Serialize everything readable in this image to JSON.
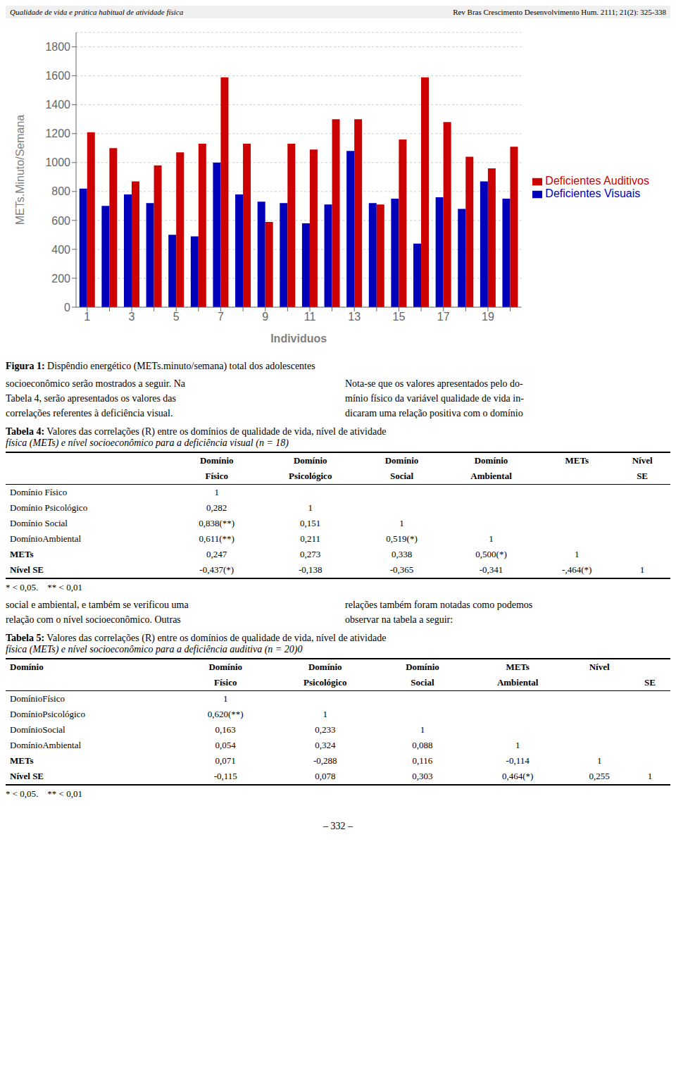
{
  "chart_data": {
    "type": "bar",
    "x_label": "Individuos",
    "y_label": "METs.Minuto/Semana",
    "categories": [
      "1",
      null,
      "3",
      null,
      "5",
      null,
      "7",
      null,
      "9",
      null,
      "11",
      null,
      "13",
      null,
      "15",
      null,
      "17",
      null,
      "19",
      null
    ],
    "series": [
      {
        "name": "Deficientes Visuais",
        "color": "#0000BB",
        "values": [
          820,
          700,
          780,
          720,
          500,
          490,
          1000,
          780,
          730,
          720,
          580,
          710,
          1080,
          720,
          750,
          440,
          760,
          680,
          870,
          750
        ]
      },
      {
        "name": "Deficientes Auditivos",
        "color": "#CC0000",
        "values": [
          1210,
          1100,
          870,
          980,
          1070,
          1130,
          1590,
          1130,
          590,
          1130,
          1090,
          1300,
          1300,
          710,
          1160,
          1590,
          1280,
          1040,
          960,
          1110
        ]
      }
    ],
    "ylim": [
      0,
      1900
    ],
    "yticks": [
      0,
      200,
      400,
      600,
      800,
      1000,
      1200,
      1400,
      1600,
      1800
    ],
    "grid": true,
    "legend": "right",
    "annotations": [
      "Qualidade de vida e prática habitual de atividade física",
      "Rev Bras Crescimento Desenvolvimento Hum. 2111; 21(2): 325-338",
      [
        "Figura 1:",
        " Dispêndio energético (METs.minuto/semana) total dos adolescentes"
      ],
      [
        "socioeconômico serão mostrados a seguir. Na\nTabela 4, serão apresentados os valores das\ncorrelações referentes à deficiência visual.",
        "Nota-se que os valores apresentados pelo do-\nmínio físico da variável qualidade de vida in-\ndicaram uma relação positiva com o domínio"
      ],
      [
        "Tabela 4:",
        " Valores das correlações (R) entre os domínios de qualidade de vida, nível de atividade",
        "física (METs) e nível socioeconômico para a deficiência visual (n = 18)"
      ],
      [
        [
          null,
          "Domínio",
          "Domínio",
          "Domínio",
          "Domínio",
          "METs",
          "Nível"
        ],
        [
          null,
          "Físico",
          "Psicológico",
          "Social",
          "Ambiental",
          null,
          "SE"
        ],
        [
          "Domínio Físico",
          "1",
          null,
          null,
          null,
          null,
          null
        ],
        [
          "Domínio Psicológico",
          "0,282",
          "1",
          null,
          null,
          null,
          null
        ],
        [
          "Domínio Social",
          "0,838(**)",
          "0,151",
          "1",
          null,
          null,
          null
        ],
        [
          "DomínioAmbiental",
          "0,611(**)",
          "0,211",
          "0,519(*)",
          "1",
          null,
          null
        ],
        [
          "METs",
          "0,247",
          "0,273",
          "0,338",
          "0,500(*)",
          "1",
          null
        ],
        [
          "Nível SE",
          "-0,437(*)",
          "-0,138",
          "-0,365",
          "-0,341",
          "-,464(*)",
          "1"
        ]
      ],
      "* < 0,05.    ** < 0,01",
      [
        "social e ambiental, e também se verificou uma\nrelação com o nível socioeconômico. Outras",
        "relações também foram notadas como podemos\nobservar na tabela a seguir:"
      ],
      [
        "Tabela 5:",
        " Valores das correlações (R) entre os domínios de qualidade de vida, nível de atividade",
        "física (METs) e nível socioeconômico para a deficiência auditiva (n = 20)0"
      ],
      [
        [
          "Domínio",
          "Domínio",
          "Domínio",
          "Domínio",
          "METs",
          "Nível",
          null
        ],
        [
          null,
          "Físico",
          "Psicológico",
          "Social",
          "Ambiental",
          null,
          "SE"
        ],
        [
          "DomínioFísico",
          "1",
          null,
          null,
          null,
          null,
          null
        ],
        [
          "DomínioPsicológico",
          "0,620(**)",
          "1",
          null,
          null,
          null,
          null
        ],
        [
          "DomínioSocial",
          "0,163",
          "0,233",
          "1",
          null,
          null,
          null
        ],
        [
          "DomínioAmbiental",
          "0,054",
          "0,324",
          "0,088",
          "1",
          null,
          null
        ],
        [
          "METs",
          "0,071",
          "-0,288",
          "0,116",
          "-0,114",
          "1",
          null
        ],
        [
          "Nível SE",
          "-0,115",
          "0,078",
          "0,303",
          "0,464(*)",
          "0,255",
          "1"
        ]
      ],
      "* < 0,05.    ** < 0,01",
      "– 332 –"
    ]
  }
}
